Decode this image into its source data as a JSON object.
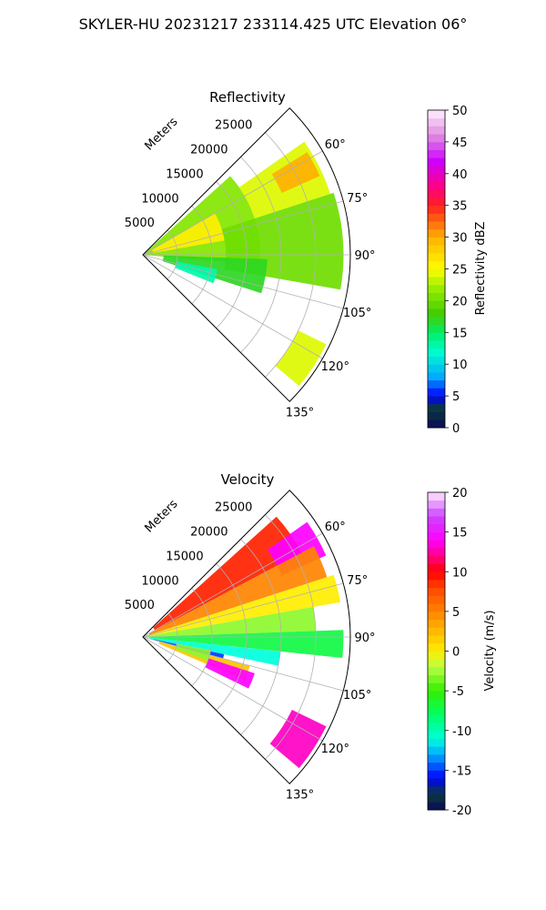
{
  "figure": {
    "suptitle": "SKYLER-HU  20231217  233114.425 UTC Elevation 06°"
  },
  "chart_data": [
    {
      "type": "polar-sector",
      "title": "Reflectivity",
      "radial_label": "Meters",
      "radial_ticks": [
        5000,
        10000,
        15000,
        20000,
        25000
      ],
      "r_max": 30000,
      "angle_ticks": [
        "60°",
        "75°",
        "90°",
        "105°",
        "120°",
        "135°"
      ],
      "angle_range_deg": [
        45,
        135
      ],
      "grid": true,
      "colorbar": {
        "label": "Reflectivity dBZ",
        "ticks": [
          0,
          5,
          10,
          15,
          20,
          25,
          30,
          35,
          40,
          45,
          50
        ],
        "range": [
          0,
          50
        ],
        "stops": [
          {
            "v": 0,
            "c": "#0a0a5a"
          },
          {
            "v": 3,
            "c": "#0a3a3a"
          },
          {
            "v": 5,
            "c": "#0000ff"
          },
          {
            "v": 8,
            "c": "#00aaff"
          },
          {
            "v": 12,
            "c": "#00ffcc"
          },
          {
            "v": 15,
            "c": "#00ee66"
          },
          {
            "v": 18,
            "c": "#44cc00"
          },
          {
            "v": 22,
            "c": "#99ee00"
          },
          {
            "v": 25,
            "c": "#ffff00"
          },
          {
            "v": 30,
            "c": "#ffb000"
          },
          {
            "v": 35,
            "c": "#ff2020"
          },
          {
            "v": 38,
            "c": "#ff0088"
          },
          {
            "v": 42,
            "c": "#cc00ff"
          },
          {
            "v": 46,
            "c": "#e08ae0"
          },
          {
            "v": 50,
            "c": "#fff0ff"
          }
        ]
      },
      "regions": [
        {
          "name": "main-echo",
          "a0": 48,
          "a1": 95,
          "r0": 0,
          "r1": 17000,
          "value": 21
        },
        {
          "name": "inner-wedge",
          "a0": 60,
          "a1": 80,
          "r0": 1500,
          "r1": 12000,
          "value": 26
        },
        {
          "name": "upper-echo",
          "a0": 55,
          "a1": 72,
          "r0": 17000,
          "r1": 28500,
          "value": 24
        },
        {
          "name": "upper-core",
          "a0": 58,
          "a1": 66,
          "r0": 22000,
          "r1": 28000,
          "value": 30
        },
        {
          "name": "mid-echo",
          "a0": 72,
          "a1": 100,
          "r0": 12000,
          "r1": 29000,
          "value": 20
        },
        {
          "name": "lower-echo",
          "a0": 92,
          "a1": 108,
          "r0": 3000,
          "r1": 18000,
          "value": 17
        },
        {
          "name": "cyan-cell",
          "a0": 101,
          "a1": 112,
          "r0": 5000,
          "r1": 11000,
          "value": 13
        },
        {
          "name": "far-cell",
          "a0": 116,
          "a1": 130,
          "r0": 25000,
          "r1": 29500,
          "value": 24
        }
      ]
    },
    {
      "type": "polar-sector",
      "title": "Velocity",
      "radial_label": "Meters",
      "radial_ticks": [
        5000,
        10000,
        15000,
        20000,
        25000
      ],
      "r_max": 30000,
      "angle_ticks": [
        "60°",
        "75°",
        "90°",
        "105°",
        "120°",
        "135°"
      ],
      "angle_range_deg": [
        45,
        135
      ],
      "grid": true,
      "colorbar": {
        "label": "Velocity (m/s)",
        "ticks": [
          -20,
          -15,
          -10,
          -5,
          0,
          5,
          10,
          15,
          20
        ],
        "range": [
          -20,
          20
        ],
        "stops": [
          {
            "v": -20,
            "c": "#0a0a5a"
          },
          {
            "v": -18,
            "c": "#0a3a3a"
          },
          {
            "v": -16,
            "c": "#0000ff"
          },
          {
            "v": -13,
            "c": "#00aaff"
          },
          {
            "v": -11,
            "c": "#00ffdd"
          },
          {
            "v": -8,
            "c": "#00ff66"
          },
          {
            "v": -5,
            "c": "#33ee00"
          },
          {
            "v": -2,
            "c": "#bbff44"
          },
          {
            "v": 0,
            "c": "#ffee00"
          },
          {
            "v": 4,
            "c": "#ff9900"
          },
          {
            "v": 8,
            "c": "#ff4400"
          },
          {
            "v": 10,
            "c": "#ff0000"
          },
          {
            "v": 12,
            "c": "#ff0088"
          },
          {
            "v": 14,
            "c": "#ff00ff"
          },
          {
            "v": 17,
            "c": "#cc44ff"
          },
          {
            "v": 20,
            "c": "#ffe8ff"
          }
        ]
      },
      "regions": [
        {
          "name": "red-band",
          "a0": 48,
          "a1": 62,
          "r0": 2000,
          "r1": 26000,
          "value": 9
        },
        {
          "name": "magenta-cap",
          "a0": 55,
          "a1": 66,
          "r0": 22000,
          "r1": 29000,
          "value": 14
        },
        {
          "name": "orange-band",
          "a0": 62,
          "a1": 72,
          "r0": 1000,
          "r1": 28000,
          "value": 5
        },
        {
          "name": "yellow-band",
          "a0": 72,
          "a1": 80,
          "r0": 500,
          "r1": 29000,
          "value": 0
        },
        {
          "name": "lightgreen-band",
          "a0": 80,
          "a1": 88,
          "r0": 500,
          "r1": 25000,
          "value": -3
        },
        {
          "name": "green-band",
          "a0": 88,
          "a1": 96,
          "r0": 800,
          "r1": 29000,
          "value": -7
        },
        {
          "name": "cyan-band",
          "a0": 96,
          "a1": 102,
          "r0": 1000,
          "r1": 20000,
          "value": -11
        },
        {
          "name": "blue-band",
          "a0": 102,
          "a1": 105,
          "r0": 1500,
          "r1": 12000,
          "value": -15
        },
        {
          "name": "yellow-lobe",
          "a0": 105,
          "a1": 113,
          "r0": 2500,
          "r1": 16000,
          "value": 2
        },
        {
          "name": "magenta-lobe",
          "a0": 108,
          "a1": 116,
          "r0": 10000,
          "r1": 17000,
          "value": 14
        },
        {
          "name": "lime-cell",
          "a0": 101,
          "a1": 110,
          "r0": 5000,
          "r1": 10000,
          "value": -3
        },
        {
          "name": "far-magenta-cell",
          "a0": 116,
          "a1": 130,
          "r0": 24000,
          "r1": 29500,
          "value": 13
        }
      ]
    }
  ]
}
